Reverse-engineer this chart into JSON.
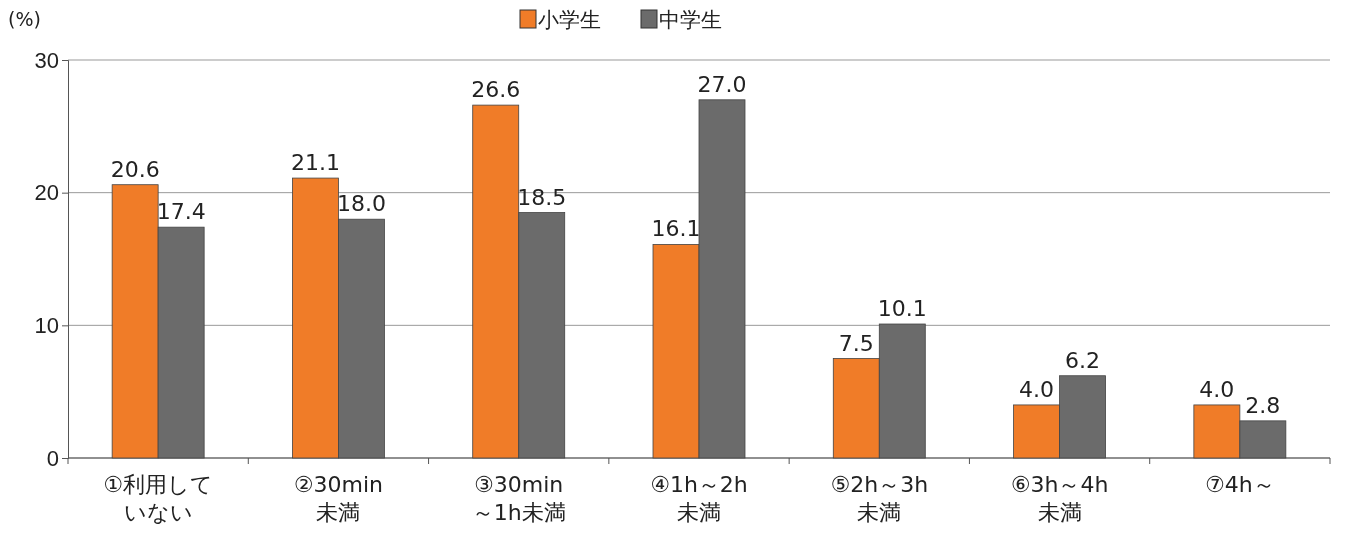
{
  "chart_data": {
    "type": "bar",
    "ylabel": "(%)",
    "categories": [
      "①利用していない",
      "②30min\n未満",
      "③30min\n～1h未満",
      "④1h～2h\n未満",
      "⑤2h～3h\n未満",
      "⑥3h～4h\n未満",
      "⑦4h～"
    ],
    "series": [
      {
        "name": "小学生",
        "color": "#f07c28",
        "values": [
          20.6,
          21.1,
          26.6,
          16.1,
          7.5,
          4.0,
          4.0
        ],
        "value_labels": [
          "20.6",
          "21.1",
          "26.6",
          "16.1",
          "7.5",
          "4.0",
          "4.0"
        ]
      },
      {
        "name": "中学生",
        "color": "#6b6b6b",
        "values": [
          17.4,
          18.0,
          18.5,
          27.0,
          10.1,
          6.2,
          2.8
        ],
        "value_labels": [
          "17.4",
          "18.0",
          "18.5",
          "27.0",
          "10.1",
          "6.2",
          "2.8"
        ]
      }
    ],
    "ylim": [
      0,
      30
    ],
    "yticks": [
      0,
      10,
      20,
      30
    ],
    "grid": "y",
    "legend": "top"
  }
}
